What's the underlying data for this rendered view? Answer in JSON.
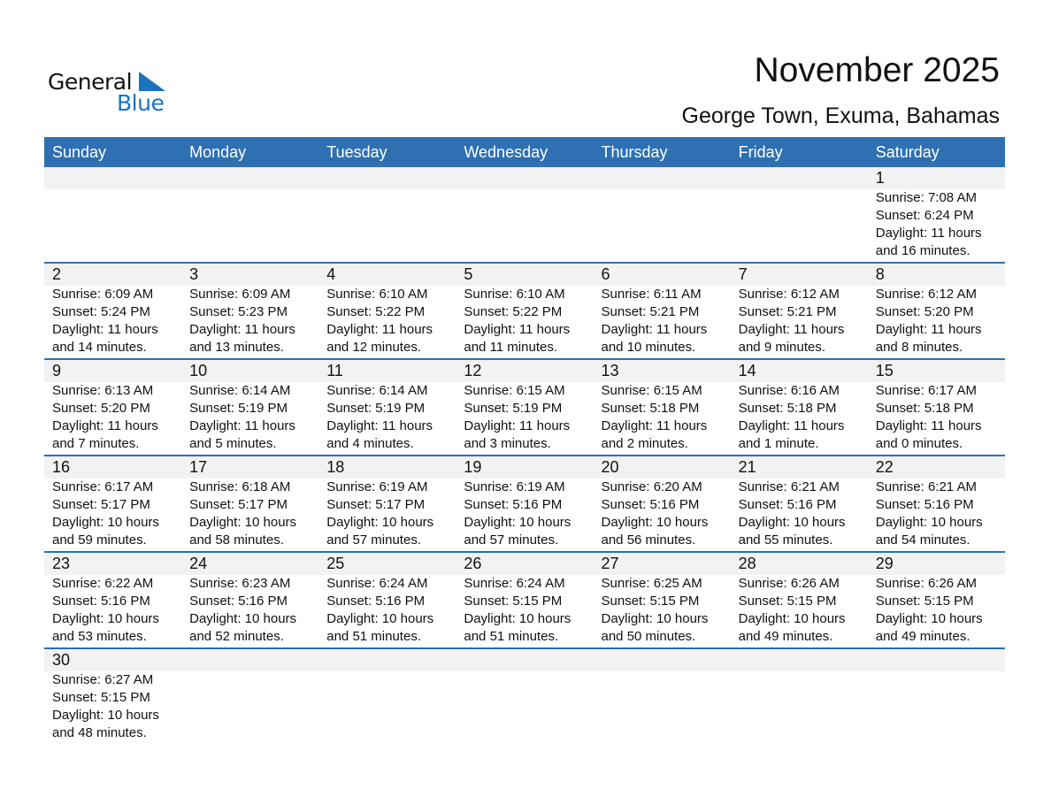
{
  "logo": {
    "text1": "General",
    "text2": "Blue",
    "color": "#1a73c0"
  },
  "title": "November 2025",
  "subtitle": "George Town, Exuma, Bahamas",
  "header_color": "#2E70B1",
  "days": [
    "Sunday",
    "Monday",
    "Tuesday",
    "Wednesday",
    "Thursday",
    "Friday",
    "Saturday"
  ],
  "weeks": [
    [
      null,
      null,
      null,
      null,
      null,
      null,
      {
        "day": "1",
        "sunrise": "Sunrise: 7:08 AM",
        "sunset": "Sunset: 6:24 PM",
        "daylight1": "Daylight: 11 hours",
        "daylight2": "and 16 minutes."
      }
    ],
    [
      {
        "day": "2",
        "sunrise": "Sunrise: 6:09 AM",
        "sunset": "Sunset: 5:24 PM",
        "daylight1": "Daylight: 11 hours",
        "daylight2": "and 14 minutes."
      },
      {
        "day": "3",
        "sunrise": "Sunrise: 6:09 AM",
        "sunset": "Sunset: 5:23 PM",
        "daylight1": "Daylight: 11 hours",
        "daylight2": "and 13 minutes."
      },
      {
        "day": "4",
        "sunrise": "Sunrise: 6:10 AM",
        "sunset": "Sunset: 5:22 PM",
        "daylight1": "Daylight: 11 hours",
        "daylight2": "and 12 minutes."
      },
      {
        "day": "5",
        "sunrise": "Sunrise: 6:10 AM",
        "sunset": "Sunset: 5:22 PM",
        "daylight1": "Daylight: 11 hours",
        "daylight2": "and 11 minutes."
      },
      {
        "day": "6",
        "sunrise": "Sunrise: 6:11 AM",
        "sunset": "Sunset: 5:21 PM",
        "daylight1": "Daylight: 11 hours",
        "daylight2": "and 10 minutes."
      },
      {
        "day": "7",
        "sunrise": "Sunrise: 6:12 AM",
        "sunset": "Sunset: 5:21 PM",
        "daylight1": "Daylight: 11 hours",
        "daylight2": "and 9 minutes."
      },
      {
        "day": "8",
        "sunrise": "Sunrise: 6:12 AM",
        "sunset": "Sunset: 5:20 PM",
        "daylight1": "Daylight: 11 hours",
        "daylight2": "and 8 minutes."
      }
    ],
    [
      {
        "day": "9",
        "sunrise": "Sunrise: 6:13 AM",
        "sunset": "Sunset: 5:20 PM",
        "daylight1": "Daylight: 11 hours",
        "daylight2": "and 7 minutes."
      },
      {
        "day": "10",
        "sunrise": "Sunrise: 6:14 AM",
        "sunset": "Sunset: 5:19 PM",
        "daylight1": "Daylight: 11 hours",
        "daylight2": "and 5 minutes."
      },
      {
        "day": "11",
        "sunrise": "Sunrise: 6:14 AM",
        "sunset": "Sunset: 5:19 PM",
        "daylight1": "Daylight: 11 hours",
        "daylight2": "and 4 minutes."
      },
      {
        "day": "12",
        "sunrise": "Sunrise: 6:15 AM",
        "sunset": "Sunset: 5:19 PM",
        "daylight1": "Daylight: 11 hours",
        "daylight2": "and 3 minutes."
      },
      {
        "day": "13",
        "sunrise": "Sunrise: 6:15 AM",
        "sunset": "Sunset: 5:18 PM",
        "daylight1": "Daylight: 11 hours",
        "daylight2": "and 2 minutes."
      },
      {
        "day": "14",
        "sunrise": "Sunrise: 6:16 AM",
        "sunset": "Sunset: 5:18 PM",
        "daylight1": "Daylight: 11 hours",
        "daylight2": "and 1 minute."
      },
      {
        "day": "15",
        "sunrise": "Sunrise: 6:17 AM",
        "sunset": "Sunset: 5:18 PM",
        "daylight1": "Daylight: 11 hours",
        "daylight2": "and 0 minutes."
      }
    ],
    [
      {
        "day": "16",
        "sunrise": "Sunrise: 6:17 AM",
        "sunset": "Sunset: 5:17 PM",
        "daylight1": "Daylight: 10 hours",
        "daylight2": "and 59 minutes."
      },
      {
        "day": "17",
        "sunrise": "Sunrise: 6:18 AM",
        "sunset": "Sunset: 5:17 PM",
        "daylight1": "Daylight: 10 hours",
        "daylight2": "and 58 minutes."
      },
      {
        "day": "18",
        "sunrise": "Sunrise: 6:19 AM",
        "sunset": "Sunset: 5:17 PM",
        "daylight1": "Daylight: 10 hours",
        "daylight2": "and 57 minutes."
      },
      {
        "day": "19",
        "sunrise": "Sunrise: 6:19 AM",
        "sunset": "Sunset: 5:16 PM",
        "daylight1": "Daylight: 10 hours",
        "daylight2": "and 57 minutes."
      },
      {
        "day": "20",
        "sunrise": "Sunrise: 6:20 AM",
        "sunset": "Sunset: 5:16 PM",
        "daylight1": "Daylight: 10 hours",
        "daylight2": "and 56 minutes."
      },
      {
        "day": "21",
        "sunrise": "Sunrise: 6:21 AM",
        "sunset": "Sunset: 5:16 PM",
        "daylight1": "Daylight: 10 hours",
        "daylight2": "and 55 minutes."
      },
      {
        "day": "22",
        "sunrise": "Sunrise: 6:21 AM",
        "sunset": "Sunset: 5:16 PM",
        "daylight1": "Daylight: 10 hours",
        "daylight2": "and 54 minutes."
      }
    ],
    [
      {
        "day": "23",
        "sunrise": "Sunrise: 6:22 AM",
        "sunset": "Sunset: 5:16 PM",
        "daylight1": "Daylight: 10 hours",
        "daylight2": "and 53 minutes."
      },
      {
        "day": "24",
        "sunrise": "Sunrise: 6:23 AM",
        "sunset": "Sunset: 5:16 PM",
        "daylight1": "Daylight: 10 hours",
        "daylight2": "and 52 minutes."
      },
      {
        "day": "25",
        "sunrise": "Sunrise: 6:24 AM",
        "sunset": "Sunset: 5:16 PM",
        "daylight1": "Daylight: 10 hours",
        "daylight2": "and 51 minutes."
      },
      {
        "day": "26",
        "sunrise": "Sunrise: 6:24 AM",
        "sunset": "Sunset: 5:15 PM",
        "daylight1": "Daylight: 10 hours",
        "daylight2": "and 51 minutes."
      },
      {
        "day": "27",
        "sunrise": "Sunrise: 6:25 AM",
        "sunset": "Sunset: 5:15 PM",
        "daylight1": "Daylight: 10 hours",
        "daylight2": "and 50 minutes."
      },
      {
        "day": "28",
        "sunrise": "Sunrise: 6:26 AM",
        "sunset": "Sunset: 5:15 PM",
        "daylight1": "Daylight: 10 hours",
        "daylight2": "and 49 minutes."
      },
      {
        "day": "29",
        "sunrise": "Sunrise: 6:26 AM",
        "sunset": "Sunset: 5:15 PM",
        "daylight1": "Daylight: 10 hours",
        "daylight2": "and 49 minutes."
      }
    ],
    [
      {
        "day": "30",
        "sunrise": "Sunrise: 6:27 AM",
        "sunset": "Sunset: 5:15 PM",
        "daylight1": "Daylight: 10 hours",
        "daylight2": "and 48 minutes."
      },
      null,
      null,
      null,
      null,
      null,
      null
    ]
  ]
}
